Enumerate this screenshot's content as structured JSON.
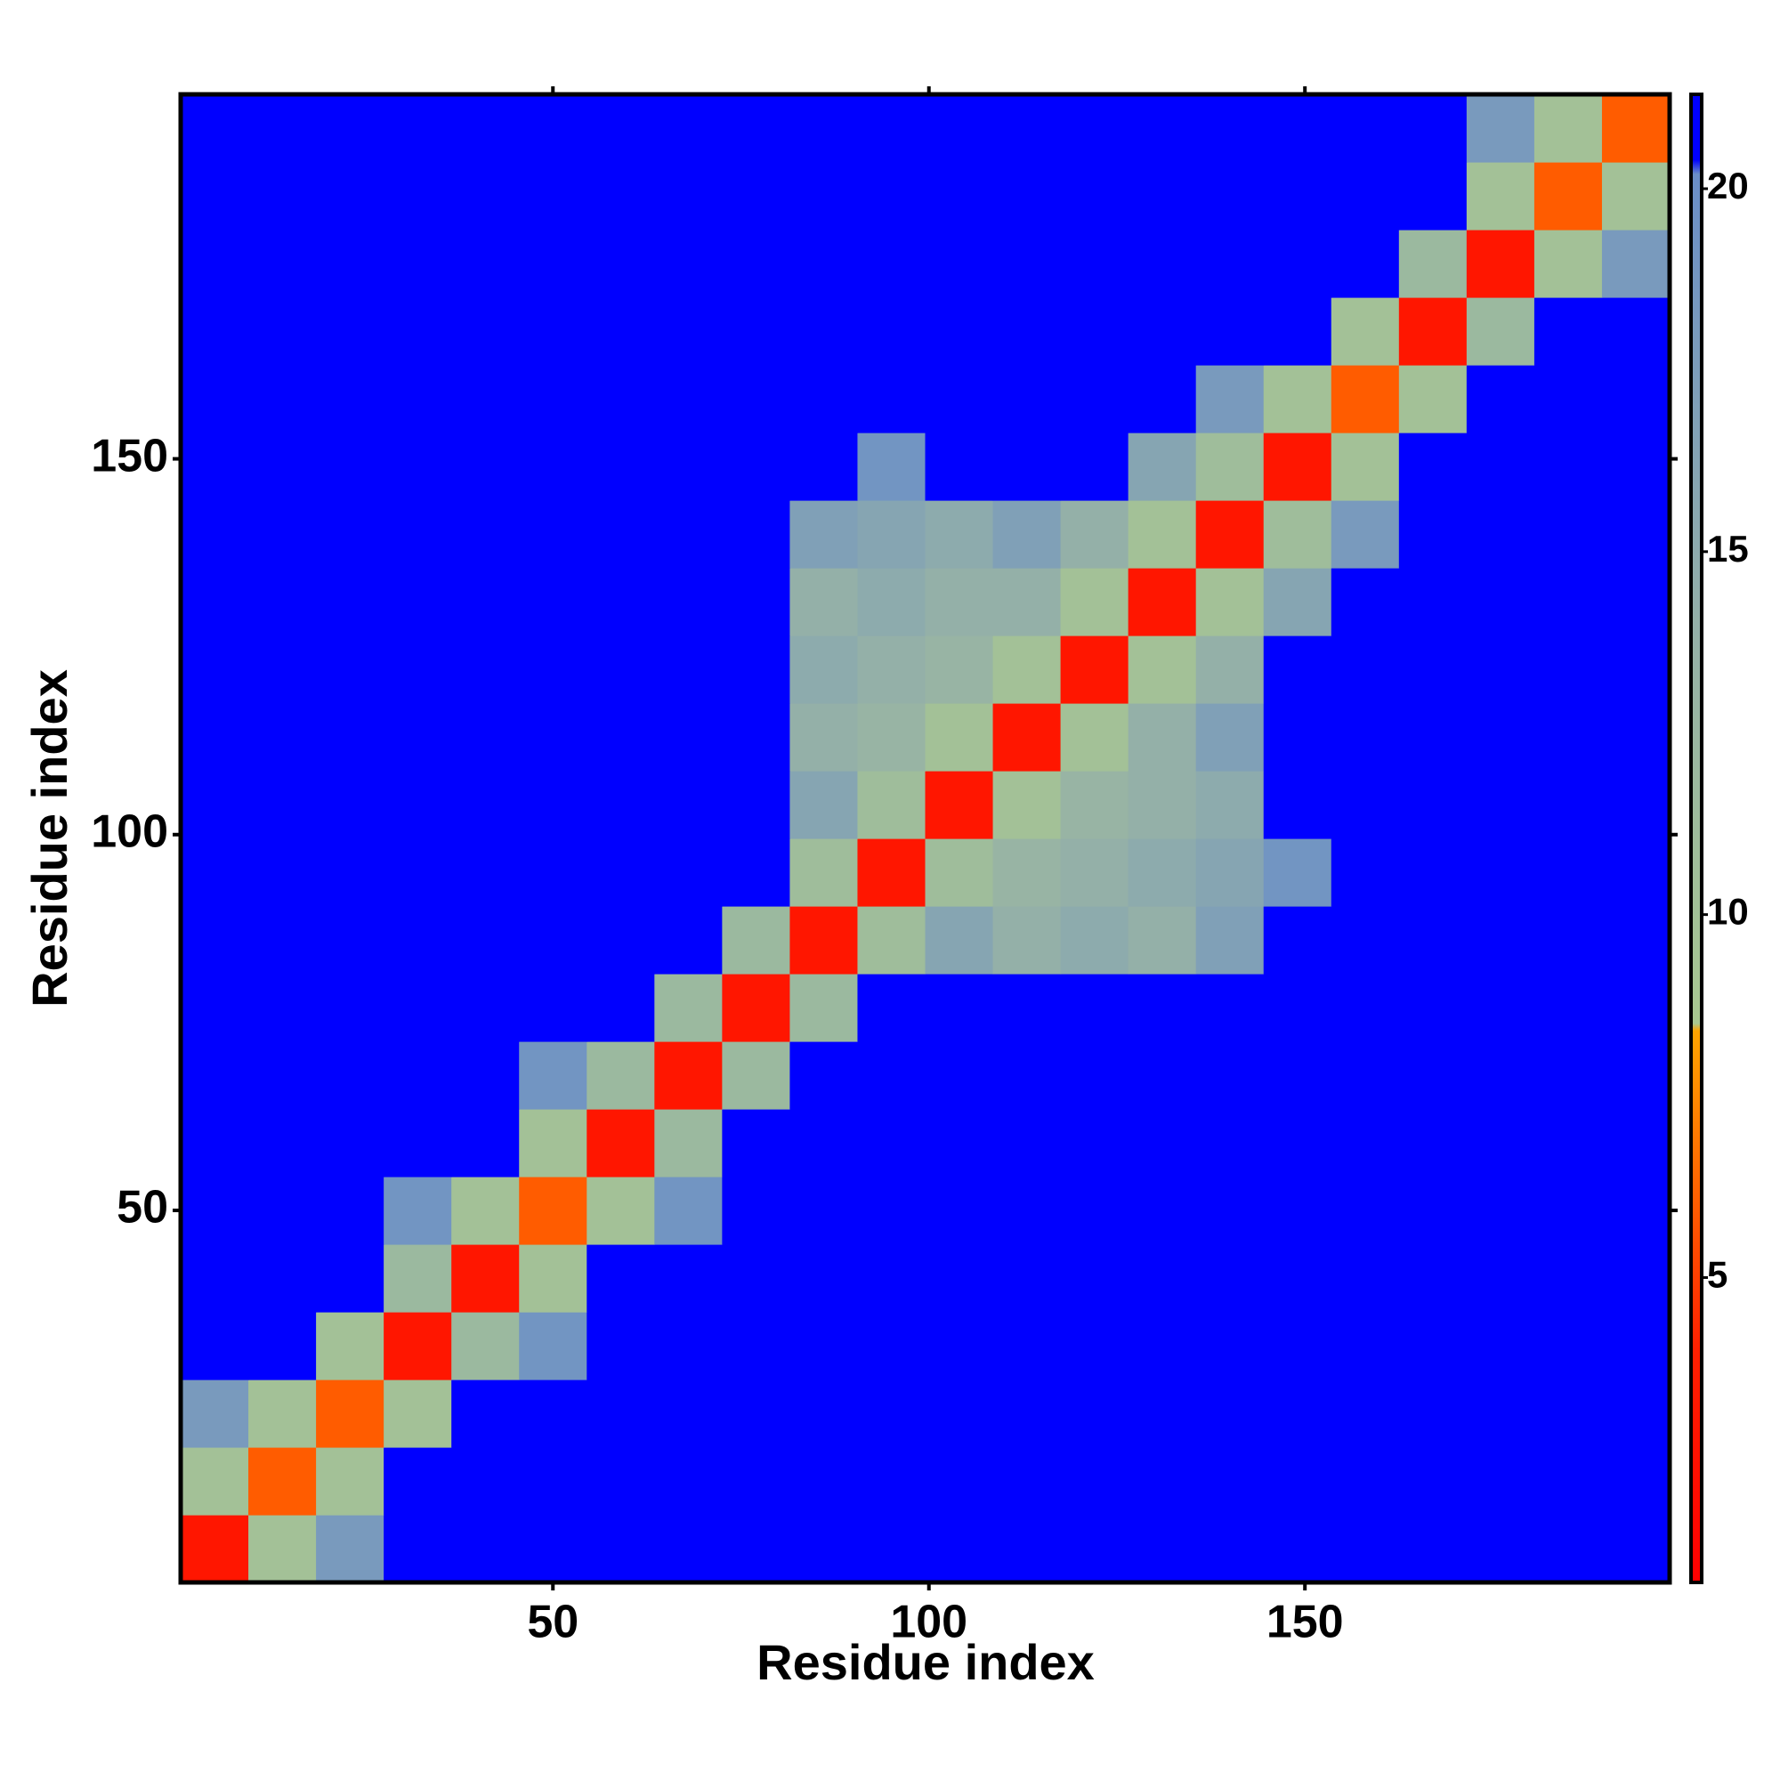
{
  "chart_data": {
    "type": "heatmap",
    "xlabel": "Residue index",
    "ylabel": "Residue index",
    "x_edges": [
      0.5,
      9.5,
      18.5,
      27.5,
      36.5,
      45.5,
      54.5,
      63.5,
      72.5,
      81.5,
      90.5,
      99.5,
      108.5,
      117.5,
      126.5,
      135.5,
      144.5,
      153.5,
      162.5,
      171.5,
      180.5,
      189.5,
      198.5
    ],
    "y_edges": [
      0.5,
      9.5,
      18.5,
      27.5,
      36.5,
      45.5,
      54.5,
      63.5,
      72.5,
      81.5,
      90.5,
      99.5,
      108.5,
      117.5,
      126.5,
      135.5,
      144.5,
      153.5,
      162.5,
      171.5,
      180.5,
      189.5,
      198.5
    ],
    "z": [
      [
        3,
        10,
        18,
        21,
        21,
        21,
        21,
        21,
        21,
        21,
        21,
        21,
        21,
        21,
        21,
        21,
        21,
        21,
        21,
        21,
        21,
        21
      ],
      [
        10,
        6,
        10,
        21,
        21,
        21,
        21,
        21,
        21,
        21,
        21,
        21,
        21,
        21,
        21,
        21,
        21,
        21,
        21,
        21,
        21,
        21
      ],
      [
        18,
        10,
        6,
        10,
        21,
        21,
        21,
        21,
        21,
        21,
        21,
        21,
        21,
        21,
        21,
        21,
        21,
        21,
        21,
        21,
        21,
        21
      ],
      [
        21,
        21,
        10,
        3,
        12,
        19,
        21,
        21,
        21,
        21,
        21,
        21,
        21,
        21,
        21,
        21,
        21,
        21,
        21,
        21,
        21,
        21
      ],
      [
        21,
        21,
        21,
        12,
        3,
        10,
        21,
        21,
        21,
        21,
        21,
        21,
        21,
        21,
        21,
        21,
        21,
        21,
        21,
        21,
        21,
        21
      ],
      [
        21,
        21,
        21,
        19,
        10,
        6,
        10,
        19,
        21,
        21,
        21,
        21,
        21,
        21,
        21,
        21,
        21,
        21,
        21,
        21,
        21,
        21
      ],
      [
        21,
        21,
        21,
        21,
        21,
        10,
        3,
        12,
        21,
        21,
        21,
        21,
        21,
        21,
        21,
        21,
        21,
        21,
        21,
        21,
        21,
        21
      ],
      [
        21,
        21,
        21,
        21,
        21,
        19,
        12,
        3,
        12,
        21,
        21,
        21,
        21,
        21,
        21,
        21,
        21,
        21,
        21,
        21,
        21,
        21
      ],
      [
        21,
        21,
        21,
        21,
        21,
        21,
        21,
        12,
        3,
        12,
        21,
        21,
        21,
        21,
        21,
        21,
        21,
        21,
        21,
        21,
        21,
        21
      ],
      [
        21,
        21,
        21,
        21,
        21,
        21,
        21,
        21,
        12,
        3,
        11,
        16,
        14,
        15,
        14,
        17,
        21,
        21,
        21,
        21,
        21,
        21
      ],
      [
        21,
        21,
        21,
        21,
        21,
        21,
        21,
        21,
        21,
        11,
        3,
        11,
        13,
        14,
        15,
        16,
        19,
        21,
        21,
        21,
        21,
        21
      ],
      [
        21,
        21,
        21,
        21,
        21,
        21,
        21,
        21,
        21,
        16,
        11,
        3,
        10,
        13,
        14,
        15,
        21,
        21,
        21,
        21,
        21,
        21
      ],
      [
        21,
        21,
        21,
        21,
        21,
        21,
        21,
        21,
        21,
        14,
        13,
        10,
        3,
        10,
        14,
        17,
        21,
        21,
        21,
        21,
        21,
        21
      ],
      [
        21,
        21,
        21,
        21,
        21,
        21,
        21,
        21,
        21,
        15,
        14,
        13,
        10,
        3,
        10,
        14,
        21,
        21,
        21,
        21,
        21,
        21
      ],
      [
        21,
        21,
        21,
        21,
        21,
        21,
        21,
        21,
        21,
        14,
        15,
        14,
        14,
        10,
        3,
        10,
        16,
        21,
        21,
        21,
        21,
        21
      ],
      [
        21,
        21,
        21,
        21,
        21,
        21,
        21,
        21,
        21,
        17,
        16,
        15,
        17,
        14,
        10,
        3,
        11,
        18,
        21,
        21,
        21,
        21
      ],
      [
        21,
        21,
        21,
        21,
        21,
        21,
        21,
        21,
        21,
        21,
        19,
        21,
        21,
        21,
        16,
        11,
        3,
        10,
        21,
        21,
        21,
        21
      ],
      [
        21,
        21,
        21,
        21,
        21,
        21,
        21,
        21,
        21,
        21,
        21,
        21,
        21,
        21,
        21,
        18,
        10,
        6,
        10,
        21,
        21,
        21
      ],
      [
        21,
        21,
        21,
        21,
        21,
        21,
        21,
        21,
        21,
        21,
        21,
        21,
        21,
        21,
        21,
        21,
        21,
        10,
        3,
        12,
        21,
        21
      ],
      [
        21,
        21,
        21,
        21,
        21,
        21,
        21,
        21,
        21,
        21,
        21,
        21,
        21,
        21,
        21,
        21,
        21,
        21,
        12,
        3,
        10,
        18
      ],
      [
        21,
        21,
        21,
        21,
        21,
        21,
        21,
        21,
        21,
        21,
        21,
        21,
        21,
        21,
        21,
        21,
        21,
        21,
        21,
        10,
        6,
        10
      ],
      [
        21,
        21,
        21,
        21,
        21,
        21,
        21,
        21,
        21,
        21,
        21,
        21,
        21,
        21,
        21,
        21,
        21,
        21,
        21,
        18,
        10,
        6
      ]
    ],
    "xlim": [
      0.5,
      198.5
    ],
    "ylim": [
      0.5,
      198.5
    ],
    "xticks": [
      50,
      100,
      150
    ],
    "yticks": [
      50,
      100,
      150
    ],
    "zlim": [
      0.8,
      21.3
    ],
    "zticks": [
      5,
      10,
      15,
      20
    ],
    "colorscale": [
      {
        "value": 0.8,
        "color": "#ff0000"
      },
      {
        "value": 4,
        "color": "#ff2000"
      },
      {
        "value": 8.4,
        "color": "#ffa500"
      },
      {
        "value": 8.5,
        "color": "#a8c890"
      },
      {
        "value": 14,
        "color": "#94b0a8"
      },
      {
        "value": 20.2,
        "color": "#6a8ec8"
      },
      {
        "value": 20.4,
        "color": "#0000ff"
      },
      {
        "value": 21.3,
        "color": "#0000ff"
      }
    ]
  }
}
